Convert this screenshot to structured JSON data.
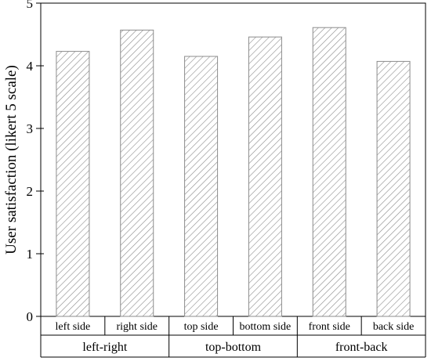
{
  "chart_data": {
    "type": "bar",
    "title": "",
    "ylabel": "User satisfaction (likert 5 scale)",
    "xlabel": "",
    "ylim": [
      0,
      5
    ],
    "yticks": [
      0,
      1,
      2,
      3,
      4,
      5
    ],
    "categories": [
      "left side",
      "right side",
      "top side",
      "bottom side",
      "front side",
      "back side"
    ],
    "values": [
      4.23,
      4.57,
      4.15,
      4.46,
      4.61,
      4.07
    ],
    "groups": [
      {
        "label": "left-right",
        "categories": [
          "left side",
          "right side"
        ]
      },
      {
        "label": "top-bottom",
        "categories": [
          "top side",
          "bottom side"
        ]
      },
      {
        "label": "front-back",
        "categories": [
          "front side",
          "back side"
        ]
      }
    ],
    "grid": false,
    "bar_fill": "diagonal-hatch",
    "bar_color": "#8c8c8c"
  }
}
